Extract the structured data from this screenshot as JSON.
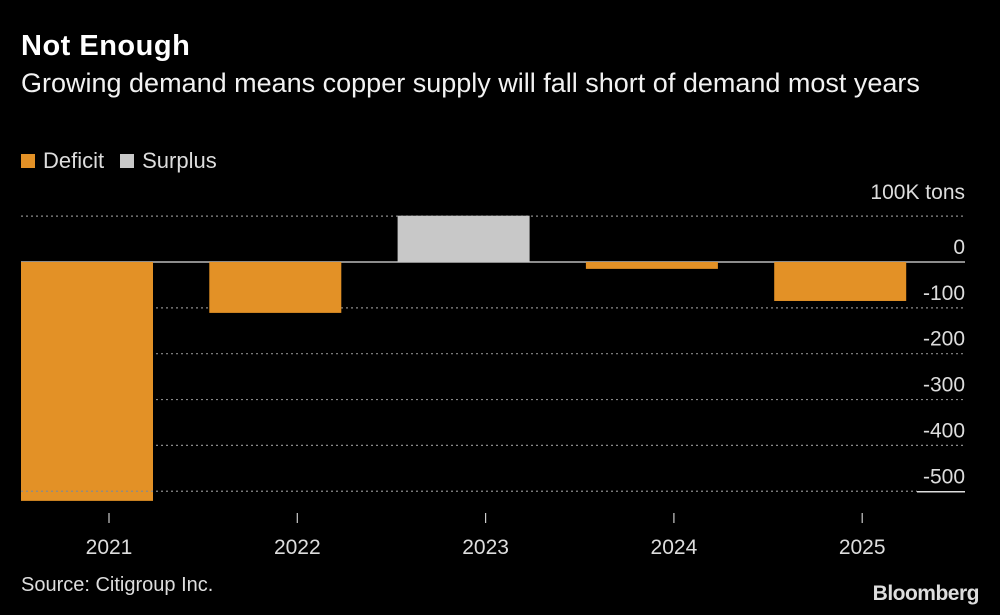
{
  "header": {
    "title": "Not Enough",
    "subtitle": "Growing demand means copper supply will fall short of demand most years"
  },
  "legend": {
    "items": [
      {
        "label": "Deficit",
        "color": "#e39126"
      },
      {
        "label": "Surplus",
        "color": "#c8c8c8"
      }
    ]
  },
  "footer": {
    "source": "Source: Citigroup Inc.",
    "brand": "Bloomberg"
  },
  "chart_data": {
    "type": "bar",
    "title": "Not Enough",
    "subtitle": "Growing demand means copper supply will fall short of demand most years",
    "unit_label": "100K tons",
    "categories": [
      "2021",
      "2022",
      "2023",
      "2024",
      "2025"
    ],
    "values": [
      -521,
      -111,
      101,
      -15,
      -85
    ],
    "ylim": [
      -500,
      100
    ],
    "yticks": [
      0,
      -100,
      -200,
      -300,
      -400,
      -500
    ],
    "ytick_labels": [
      "0",
      "-100",
      "-200",
      "-300",
      "-400",
      "-500"
    ],
    "grid": true,
    "legend_position": "top-left",
    "colors": {
      "deficit": "#e39126",
      "surplus": "#c8c8c8",
      "grid": "#8a8a8a",
      "axis_text": "#dddddd",
      "background": "#000000"
    }
  }
}
